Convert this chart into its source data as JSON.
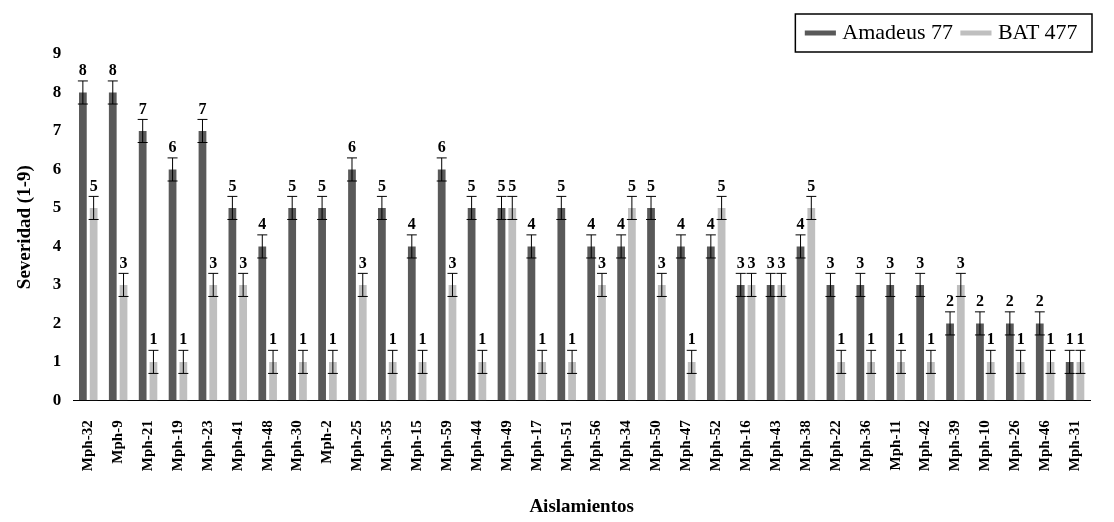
{
  "chart_data": {
    "type": "bar",
    "xlabel": "Aislamientos",
    "ylabel": "Severidad (1-9)",
    "categories": [
      "Mph-32",
      "Mph-9",
      "Mph-21",
      "Mph-19",
      "Mph-23",
      "Mph-41",
      "Mph-48",
      "Mph-30",
      "Mph-2",
      "Mph-25",
      "Mph-35",
      "Mph-15",
      "Mph-59",
      "Mph-44",
      "Mph-49",
      "Mph-17",
      "Mph-51",
      "Mph-56",
      "Mph-34",
      "Mph-50",
      "Mph-47",
      "Mph-52",
      "Mph-16",
      "Mph-43",
      "Mph-38",
      "Mph-22",
      "Mph-36",
      "Mph-11",
      "Mph-42",
      "Mph-39",
      "Mph-10",
      "Mph-26",
      "Mph-46",
      "Mph-31"
    ],
    "series": [
      {
        "name": "Amadeus 77",
        "color": "#595959",
        "values": [
          8,
          8,
          7,
          6,
          7,
          5,
          4,
          5,
          5,
          6,
          5,
          4,
          6,
          5,
          5,
          4,
          5,
          4,
          4,
          5,
          4,
          4,
          3,
          3,
          4,
          3,
          3,
          3,
          3,
          2,
          2,
          2,
          2,
          1
        ],
        "errors": [
          0.3,
          0.3,
          0.3,
          0.3,
          0.3,
          0.3,
          0.3,
          0.3,
          0.3,
          0.3,
          0.3,
          0.3,
          0.3,
          0.3,
          0.3,
          0.3,
          0.3,
          0.3,
          0.3,
          0.3,
          0.3,
          0.3,
          0.3,
          0.3,
          0.3,
          0.3,
          0.3,
          0.3,
          0.3,
          0.3,
          0.3,
          0.3,
          0.3,
          0.3
        ]
      },
      {
        "name": "BAT 477",
        "color": "#bfbfbf",
        "values": [
          5,
          3,
          1,
          1,
          3,
          3,
          1,
          1,
          1,
          3,
          1,
          1,
          3,
          1,
          5,
          1,
          1,
          3,
          5,
          3,
          1,
          5,
          3,
          3,
          5,
          1,
          1,
          1,
          1,
          3,
          1,
          1,
          1,
          1
        ],
        "errors": [
          0.3,
          0.3,
          0.3,
          0.3,
          0.3,
          0.3,
          0.3,
          0.3,
          0.3,
          0.3,
          0.3,
          0.3,
          0.3,
          0.3,
          0.3,
          0.3,
          0.3,
          0.3,
          0.3,
          0.3,
          0.3,
          0.3,
          0.3,
          0.3,
          0.3,
          0.3,
          0.3,
          0.3,
          0.3,
          0.3,
          0.3,
          0.3,
          0.3,
          0.3
        ]
      }
    ],
    "ylim": [
      0,
      9
    ],
    "yticks": [
      0,
      1,
      2,
      3,
      4,
      5,
      6,
      7,
      8,
      9
    ],
    "grid": false,
    "legend": "top right",
    "data_labels": true
  }
}
